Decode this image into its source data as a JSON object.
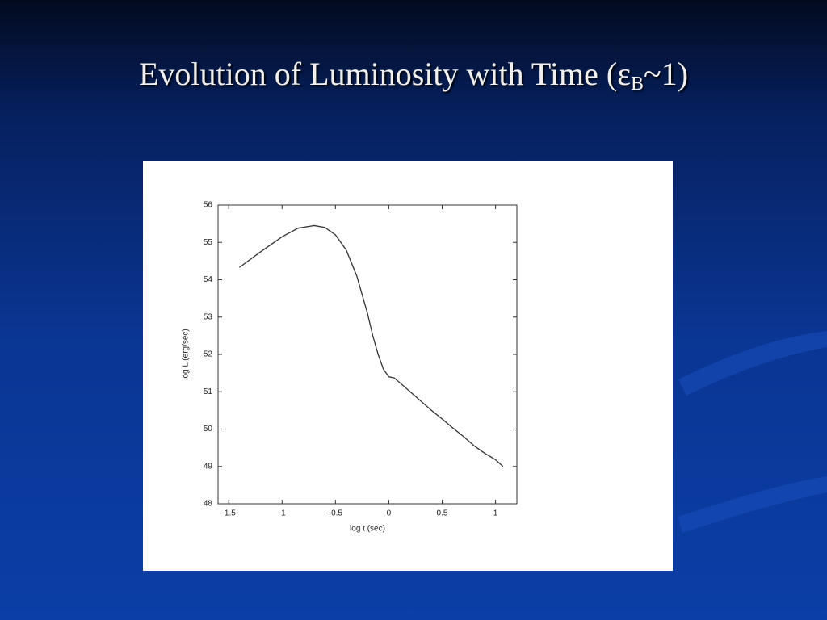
{
  "slide": {
    "title": "Evolution of Luminosity with Time (ε",
    "title_subscript": "B",
    "title_end": "~1)"
  },
  "chart_data": {
    "type": "line",
    "x_label": "log t (sec)",
    "y_label": "log L (erg/sec)",
    "x": [
      -1.4,
      -1.2,
      -1.0,
      -0.85,
      -0.7,
      -0.6,
      -0.5,
      -0.4,
      -0.3,
      -0.2,
      -0.15,
      -0.1,
      -0.05,
      0,
      0.05,
      0.1,
      0.2,
      0.3,
      0.4,
      0.5,
      0.6,
      0.7,
      0.8,
      0.9,
      1.0,
      1.07
    ],
    "values": [
      54.33,
      54.75,
      55.15,
      55.38,
      55.45,
      55.4,
      55.2,
      54.8,
      54.1,
      53.1,
      52.5,
      52.0,
      51.6,
      51.4,
      51.37,
      51.25,
      51.0,
      50.75,
      50.5,
      50.27,
      50.03,
      49.8,
      49.55,
      49.35,
      49.18,
      49.0
    ],
    "color": "#333333",
    "xlim": [
      -1.6,
      1.2
    ],
    "xticks": [
      -1.5,
      -1,
      -0.5,
      0,
      0.5,
      1
    ],
    "ylim": [
      48,
      56
    ],
    "yticks": [
      48,
      49,
      50,
      51,
      52,
      53,
      54,
      55,
      56
    ]
  }
}
